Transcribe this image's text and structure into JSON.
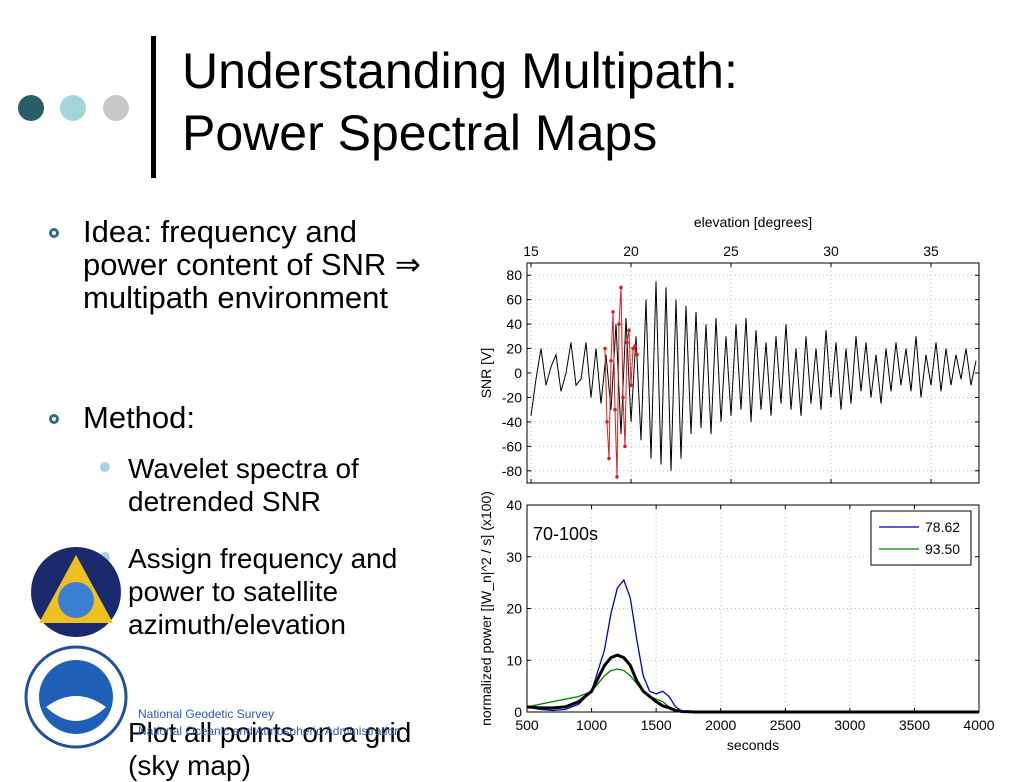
{
  "slide": {
    "title": [
      "Understanding Multipath:",
      "Power Spectral Maps"
    ],
    "bullets": [
      "Idea: frequency and power content of SNR ⇒ multipath environment",
      "Method:"
    ],
    "sub_bullets": [
      "Wavelet spectra of detrended SNR",
      "Assign frequency and power to satellite azimuth/elevation",
      "Plot all points on a grid (sky map)"
    ],
    "logo_texts": [
      "National Geodetic Survey",
      "National Oceanic and Atmospheric Administration"
    ]
  },
  "chart_data": [
    {
      "type": "line",
      "xlabel": "elevation [degrees]",
      "ylabel": "SNR [V]",
      "xlim": [
        14.8,
        37.4
      ],
      "ylim": [
        -90,
        90
      ],
      "xticks": [
        15,
        20,
        25,
        30,
        35
      ],
      "yticks": [
        80,
        60,
        40,
        20,
        0,
        -20,
        -40,
        -60,
        -80
      ],
      "grid": true,
      "series": [
        {
          "color": "#000000",
          "marker": false,
          "x": [
            15,
            15.25,
            15.5,
            15.75,
            16,
            16.25,
            16.5,
            16.75,
            17,
            17.25,
            17.5,
            17.75,
            18,
            18.25,
            18.5,
            18.75,
            19,
            19.25,
            19.5,
            19.75,
            20,
            20.25,
            20.5,
            20.75,
            21,
            21.25,
            21.5,
            21.75,
            22,
            22.25,
            22.5,
            22.75,
            23,
            23.25,
            23.5,
            23.75,
            24,
            24.25,
            24.5,
            24.75,
            25,
            25.25,
            25.5,
            25.75,
            26,
            26.25,
            26.5,
            26.75,
            27,
            27.25,
            27.5,
            27.75,
            28,
            28.25,
            28.5,
            28.75,
            29,
            29.25,
            29.5,
            29.75,
            30,
            30.25,
            30.5,
            30.75,
            31,
            31.25,
            31.5,
            31.75,
            32,
            32.25,
            32.5,
            32.75,
            33,
            33.25,
            33.5,
            33.75,
            34,
            34.25,
            34.5,
            34.75,
            35,
            35.25,
            35.5,
            35.75,
            36,
            36.25,
            36.5,
            36.75,
            37,
            37.25
          ],
          "values": [
            -35,
            -5,
            20,
            -10,
            5,
            15,
            -15,
            0,
            25,
            -10,
            -5,
            25,
            -20,
            20,
            -25,
            15,
            -30,
            40,
            -50,
            45,
            -40,
            30,
            -55,
            60,
            -70,
            75,
            -75,
            70,
            -80,
            60,
            -70,
            55,
            -50,
            50,
            -45,
            40,
            -50,
            45,
            -40,
            30,
            -35,
            40,
            -30,
            45,
            -40,
            35,
            -30,
            25,
            -35,
            30,
            -25,
            40,
            -30,
            20,
            -35,
            30,
            -25,
            20,
            -30,
            35,
            -20,
            25,
            -30,
            20,
            -25,
            30,
            -15,
            25,
            -20,
            15,
            -25,
            20,
            -15,
            25,
            -10,
            20,
            -15,
            30,
            -20,
            15,
            -10,
            25,
            -15,
            20,
            -10,
            15,
            -5,
            20,
            -10,
            10
          ]
        },
        {
          "color": "#d62020",
          "marker": true,
          "x": [
            18.7,
            18.8,
            18.9,
            19,
            19.1,
            19.2,
            19.3,
            19.4,
            19.5,
            19.6,
            19.7,
            19.8,
            19.9,
            20,
            20.1,
            20.2,
            20.3
          ],
          "values": [
            20,
            -40,
            -70,
            10,
            50,
            -30,
            -85,
            40,
            70,
            -20,
            -60,
            25,
            35,
            -10,
            20,
            22,
            15
          ]
        }
      ]
    },
    {
      "type": "line",
      "xlabel": "seconds",
      "ylabel": "normalized power [|W_n|^2 / s] (x100)",
      "annotation": "70-100s",
      "xlim": [
        500,
        4000
      ],
      "ylim": [
        0,
        40
      ],
      "xticks": [
        500,
        1000,
        1500,
        2000,
        2500,
        3000,
        3500,
        4000
      ],
      "yticks": [
        0,
        10,
        20,
        30,
        40
      ],
      "grid": true,
      "legend": "upper right",
      "series": [
        {
          "name": "78.62",
          "color": "#0000cc",
          "width": 1.3,
          "x": [
            500,
            600,
            700,
            800,
            900,
            1000,
            1100,
            1150,
            1200,
            1250,
            1300,
            1350,
            1400,
            1450,
            1500,
            1550,
            1600,
            1650,
            1700,
            1800,
            2000,
            4000
          ],
          "values": [
            1,
            0.5,
            0.3,
            0.5,
            1.5,
            4,
            12,
            19,
            24,
            25.5,
            22,
            14,
            7,
            4,
            3.5,
            4,
            3,
            1,
            0.2,
            0,
            0,
            0
          ]
        },
        {
          "name": "93.50",
          "color": "#008000",
          "width": 1.3,
          "x": [
            500,
            600,
            700,
            800,
            900,
            1000,
            1100,
            1150,
            1200,
            1250,
            1300,
            1350,
            1400,
            1450,
            1500,
            1550,
            1600,
            1650,
            1700,
            1800,
            2000,
            4000
          ],
          "values": [
            1,
            1.5,
            2,
            2.5,
            3,
            4,
            7,
            8,
            8.3,
            8,
            7,
            5.5,
            4,
            3,
            2.5,
            2,
            1,
            0.5,
            0.1,
            0,
            0,
            0
          ]
        },
        {
          "color": "#000000",
          "width": 3,
          "x": [
            500,
            600,
            700,
            800,
            900,
            1000,
            1100,
            1150,
            1200,
            1250,
            1300,
            1350,
            1400,
            1450,
            1500,
            1550,
            1600,
            1650,
            1700,
            1800,
            2000,
            4000
          ],
          "values": [
            1,
            0.8,
            0.8,
            1,
            2,
            4,
            9,
            10.5,
            11,
            10.5,
            9,
            6,
            4,
            3,
            2,
            1.2,
            0.8,
            0.3,
            0.1,
            0,
            0,
            0
          ]
        }
      ]
    }
  ]
}
